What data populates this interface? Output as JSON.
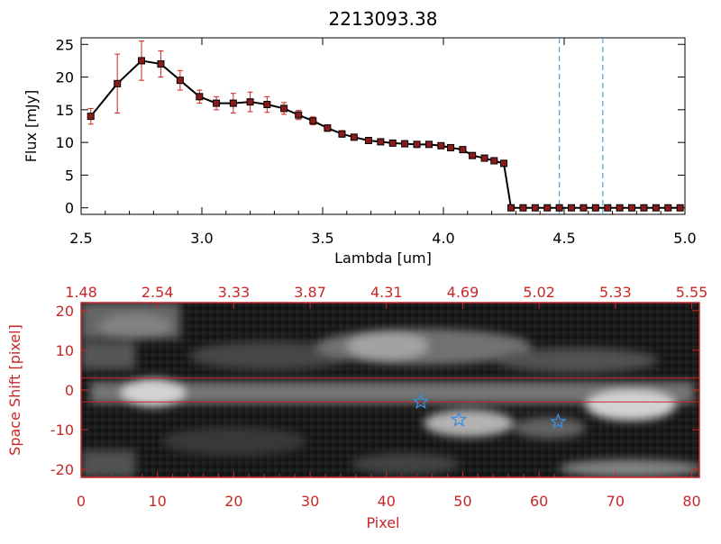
{
  "chart_data": [
    {
      "type": "line",
      "title": "2213093.38",
      "xlabel": "Lambda [um]",
      "ylabel": "Flux [mJy]",
      "xlim": [
        2.5,
        5.0
      ],
      "ylim": [
        -1,
        26
      ],
      "x_ticks": [
        "2.5",
        "3.0",
        "3.5",
        "4.0",
        "4.5",
        "5.0"
      ],
      "y_ticks": [
        "0",
        "5",
        "10",
        "15",
        "20",
        "25"
      ],
      "colors": {
        "line": "#000000",
        "marker": "#8b1a1a",
        "error": "#d42020",
        "vline": "#3a8fc0"
      },
      "vlines": [
        4.48,
        4.66
      ],
      "series": [
        {
          "x": [
            2.54,
            2.65,
            2.75,
            2.83,
            2.91,
            2.99,
            3.06,
            3.13,
            3.2,
            3.27,
            3.34,
            3.4,
            3.46,
            3.52,
            3.58,
            3.63,
            3.69,
            3.74,
            3.79,
            3.84,
            3.89,
            3.94,
            3.99,
            4.03,
            4.08,
            4.12,
            4.17,
            4.21,
            4.25,
            4.28,
            4.33,
            4.38,
            4.43,
            4.48,
            4.53,
            4.58,
            4.63,
            4.68,
            4.73,
            4.78,
            4.83,
            4.88,
            4.93,
            4.98
          ],
          "y": [
            14.0,
            19.0,
            22.5,
            22.0,
            19.5,
            17.0,
            16.0,
            16.0,
            16.2,
            15.8,
            15.2,
            14.2,
            13.3,
            12.2,
            11.3,
            10.8,
            10.3,
            10.1,
            9.9,
            9.8,
            9.7,
            9.7,
            9.5,
            9.2,
            8.9,
            8.0,
            7.6,
            7.2,
            6.8,
            0,
            0,
            0,
            0,
            0,
            0,
            0,
            0,
            0,
            0,
            0,
            0,
            0,
            0,
            0
          ],
          "yerr": [
            1.2,
            4.5,
            3.0,
            2.0,
            1.5,
            1.0,
            1.0,
            1.5,
            1.5,
            1.2,
            0.9,
            0.7,
            0.6,
            0.5,
            0.5,
            0.4,
            0.4,
            0.4,
            0.4,
            0.4,
            0.4,
            0.4,
            0.4,
            0.4,
            0.4,
            0.4,
            0.4,
            0.4,
            0.4,
            0,
            0,
            0,
            0,
            0,
            0,
            0,
            0,
            0,
            0,
            0,
            0,
            0,
            0,
            0
          ]
        }
      ]
    },
    {
      "type": "heatmap",
      "xlabel": "Pixel",
      "ylabel": "Space Shift [pixel]",
      "xlim": [
        0,
        81
      ],
      "ylim": [
        -22,
        22
      ],
      "x_ticks": [
        "0",
        "10",
        "20",
        "30",
        "40",
        "50",
        "60",
        "70",
        "80"
      ],
      "y_ticks": [
        "-20",
        "-10",
        "0",
        "10",
        "20"
      ],
      "top_ticks": [
        "1.48",
        "2.54",
        "3.33",
        "3.87",
        "4.31",
        "4.69",
        "5.02",
        "5.33",
        "5.55"
      ],
      "colors": {
        "axes": "#c62828",
        "star": "#3a8fe0"
      },
      "hlines": [
        3,
        -3
      ],
      "markers": [
        {
          "x": 44.5,
          "y": -3
        },
        {
          "x": 49.5,
          "y": -7.5
        },
        {
          "x": 62.5,
          "y": -8
        }
      ]
    }
  ]
}
